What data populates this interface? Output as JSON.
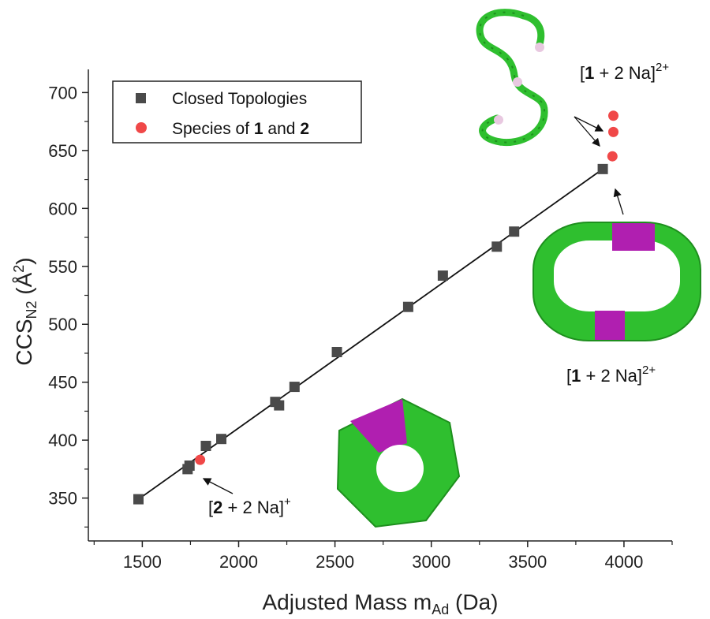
{
  "chart_data": {
    "type": "scatter",
    "xlabel": "Adjusted Mass m",
    "xlabel_sub": "Ad",
    "xlabel_unit": "(Da)",
    "ylabel": "CCS",
    "ylabel_sub": "N2",
    "ylabel_unit": "(Å",
    "ylabel_sup": "2",
    "ylabel_close": ")",
    "xlim": [
      1220,
      4250
    ],
    "ylim": [
      313,
      720
    ],
    "x_ticks": [
      1500,
      2000,
      2500,
      3000,
      3500,
      4000
    ],
    "y_ticks": [
      350,
      400,
      450,
      500,
      550,
      600,
      650,
      700
    ],
    "legend_position": "top-left",
    "series": [
      {
        "name": "Closed Topologies",
        "marker": "square",
        "color": "#4a4a4a",
        "points": [
          {
            "x": 1480,
            "y": 349
          },
          {
            "x": 1735,
            "y": 375
          },
          {
            "x": 1745,
            "y": 378
          },
          {
            "x": 1830,
            "y": 395
          },
          {
            "x": 1910,
            "y": 401
          },
          {
            "x": 2190,
            "y": 433
          },
          {
            "x": 2210,
            "y": 430
          },
          {
            "x": 2290,
            "y": 446
          },
          {
            "x": 2510,
            "y": 476
          },
          {
            "x": 2880,
            "y": 515
          },
          {
            "x": 3060,
            "y": 542
          },
          {
            "x": 3340,
            "y": 567
          },
          {
            "x": 3430,
            "y": 580
          },
          {
            "x": 3890,
            "y": 634
          }
        ]
      },
      {
        "name_parts": [
          "Species of ",
          "1",
          " and ",
          "2"
        ],
        "marker": "circle",
        "color": "#f04848",
        "points": [
          {
            "x": 1800,
            "y": 383
          },
          {
            "x": 3940,
            "y": 645
          },
          {
            "x": 3945,
            "y": 666
          },
          {
            "x": 3945,
            "y": 680
          }
        ]
      }
    ],
    "fit_line": {
      "x1": 1480,
      "y1": 349,
      "x2": 3890,
      "y2": 634,
      "color": "#111111"
    },
    "annotations": [
      {
        "prefix": "[",
        "bold": "1",
        "rest": " + 2 Na]",
        "sup": "2+"
      },
      {
        "prefix": "[",
        "bold": "1",
        "rest": " + 2 Na]",
        "sup": "2+"
      },
      {
        "prefix": "[",
        "bold": "2",
        "rest": " + 2 Na]",
        "sup": "+"
      }
    ]
  },
  "colors": {
    "molecule_green": "#2fbf2f",
    "molecule_dark_green": "#1e8f1e",
    "molecule_magenta": "#b01fb0",
    "atom_pink": "#e8c8e0"
  }
}
